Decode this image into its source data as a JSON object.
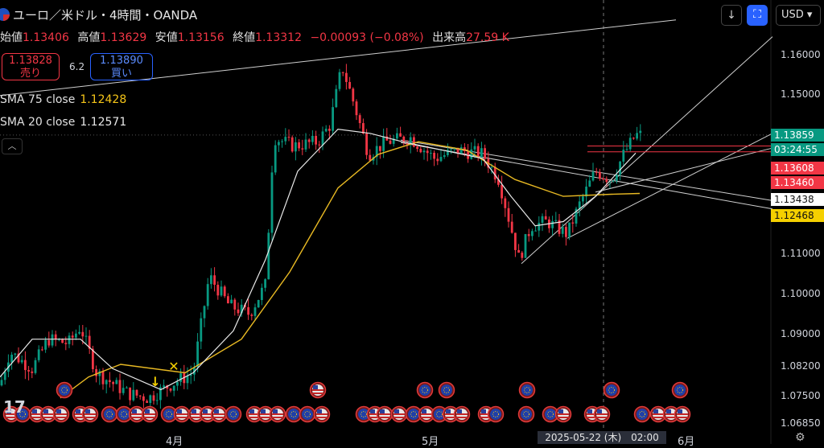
{
  "header": {
    "title": "ユーロ／米ドル・4時間・OANDA"
  },
  "ohlc": {
    "open_label": "始値",
    "open": "1.13406",
    "high_label": "高値",
    "high": "1.13629",
    "low_label": "安値",
    "low": "1.13156",
    "close_label": "終値",
    "close": "1.13312",
    "change": "−0.00093 (−0.08%)",
    "volume_label": "出来高",
    "volume": "27.59 K"
  },
  "trade": {
    "sell_price": "1.13828",
    "sell_label": "売り",
    "spread": "6.2",
    "buy_price": "1.13890",
    "buy_label": "買い"
  },
  "indicators": {
    "sma75_label": "SMA 75 close",
    "sma75_value": "1.12428",
    "sma20_label": "SMA 20 close",
    "sma20_value": "1.12571"
  },
  "toolbar": {
    "currency": "USD"
  },
  "price_labels": {
    "last": "1.13859",
    "countdown": "03:24:55",
    "red1": "1.13608",
    "red2": "1.13460",
    "white": "1.13438",
    "yellow": "1.12468"
  },
  "colors": {
    "up": "#089981",
    "down": "#f23645",
    "sma75": "#e8b923",
    "sma20": "#e8e8e8",
    "last": "#089981"
  },
  "chart_data": {
    "type": "candlestick",
    "ylim": [
      1.0685,
      1.165
    ],
    "y_ticks": [
      "1.16000",
      "1.15000",
      "1.11000",
      "1.10000",
      "1.09000",
      "1.08200",
      "1.07500",
      "1.06850"
    ],
    "x_labels": [
      "4月",
      "5月",
      "6月"
    ],
    "crosshair_label": "2025-05-22 (木)　02:00",
    "anchors": [
      [
        0,
        1.079
      ],
      [
        12,
        1.087
      ],
      [
        40,
        1.083
      ],
      [
        60,
        1.09
      ],
      [
        85,
        1.089
      ],
      [
        100,
        1.093
      ],
      [
        120,
        1.082
      ],
      [
        160,
        1.077
      ],
      [
        185,
        1.076
      ],
      [
        210,
        1.079
      ],
      [
        240,
        1.082
      ],
      [
        260,
        1.105
      ],
      [
        285,
        1.098
      ],
      [
        310,
        1.096
      ],
      [
        330,
        1.103
      ],
      [
        340,
        1.138
      ],
      [
        365,
        1.136
      ],
      [
        395,
        1.137
      ],
      [
        410,
        1.141
      ],
      [
        425,
        1.155
      ],
      [
        440,
        1.146
      ],
      [
        458,
        1.134
      ],
      [
        480,
        1.137
      ],
      [
        510,
        1.138
      ],
      [
        540,
        1.133
      ],
      [
        570,
        1.135
      ],
      [
        600,
        1.134
      ],
      [
        620,
        1.128
      ],
      [
        645,
        1.109
      ],
      [
        660,
        1.117
      ],
      [
        680,
        1.118
      ],
      [
        705,
        1.115
      ],
      [
        720,
        1.122
      ],
      [
        740,
        1.13
      ],
      [
        760,
        1.128
      ],
      [
        775,
        1.134
      ],
      [
        790,
        1.1386
      ]
    ],
    "sma20_anchors": [
      [
        0,
        1.081
      ],
      [
        40,
        1.09
      ],
      [
        100,
        1.09
      ],
      [
        140,
        1.083
      ],
      [
        200,
        1.078
      ],
      [
        240,
        1.082
      ],
      [
        290,
        1.092
      ],
      [
        330,
        1.109
      ],
      [
        370,
        1.13
      ],
      [
        420,
        1.14
      ],
      [
        460,
        1.139
      ],
      [
        500,
        1.137
      ],
      [
        550,
        1.135
      ],
      [
        600,
        1.133
      ],
      [
        635,
        1.124
      ],
      [
        665,
        1.117
      ],
      [
        700,
        1.118
      ],
      [
        740,
        1.124
      ],
      [
        790,
        1.1343
      ]
    ],
    "sma75_anchors": [
      [
        75,
        1.076
      ],
      [
        110,
        1.081
      ],
      [
        150,
        1.084
      ],
      [
        230,
        1.082
      ],
      [
        300,
        1.09
      ],
      [
        360,
        1.106
      ],
      [
        420,
        1.126
      ],
      [
        470,
        1.134
      ],
      [
        520,
        1.137
      ],
      [
        580,
        1.135
      ],
      [
        640,
        1.128
      ],
      [
        700,
        1.124
      ],
      [
        760,
        1.1245
      ],
      [
        795,
        1.1247
      ]
    ],
    "trendlines": [
      [
        [
          0,
          1.148
        ],
        [
          840,
          1.166
        ]
      ],
      [
        [
          498,
          1.1374
        ],
        [
          960,
          1.123
        ]
      ],
      [
        [
          498,
          1.1368
        ],
        [
          960,
          1.121
        ]
      ],
      [
        [
          648,
          1.108
        ],
        [
          960,
          1.162
        ]
      ],
      [
        [
          705,
          1.114
        ],
        [
          960,
          1.139
        ]
      ],
      [
        [
          740,
          1.125
        ],
        [
          960,
          1.1355
        ]
      ]
    ],
    "hlines": [
      1.136,
      1.1346
    ],
    "hline_x_start": 730,
    "crosshair_x": 750,
    "events": [
      {
        "x": 80,
        "row": 1,
        "kind": "eu"
      },
      {
        "x": 395,
        "row": 1,
        "kind": "us"
      },
      {
        "x": 528,
        "row": 1,
        "kind": "eu"
      },
      {
        "x": 555,
        "row": 1,
        "kind": "eu"
      },
      {
        "x": 655,
        "row": 1,
        "kind": "eu"
      },
      {
        "x": 760,
        "row": 1,
        "kind": "eu"
      },
      {
        "x": 845,
        "row": 1,
        "kind": "eu"
      },
      {
        "x": 14,
        "row": 0,
        "kind": "us"
      },
      {
        "x": 28,
        "row": 0,
        "kind": "eu"
      },
      {
        "x": 46,
        "row": 0,
        "kind": "us"
      },
      {
        "x": 60,
        "row": 0,
        "kind": "us"
      },
      {
        "x": 76,
        "row": 0,
        "kind": "us"
      },
      {
        "x": 100,
        "row": 0,
        "kind": "us"
      },
      {
        "x": 112,
        "row": 0,
        "kind": "us"
      },
      {
        "x": 136,
        "row": 0,
        "kind": "eu"
      },
      {
        "x": 154,
        "row": 0,
        "kind": "eu"
      },
      {
        "x": 170,
        "row": 0,
        "kind": "us"
      },
      {
        "x": 186,
        "row": 0,
        "kind": "us"
      },
      {
        "x": 210,
        "row": 0,
        "kind": "eu"
      },
      {
        "x": 226,
        "row": 0,
        "kind": "us"
      },
      {
        "x": 244,
        "row": 0,
        "kind": "us"
      },
      {
        "x": 258,
        "row": 0,
        "kind": "us"
      },
      {
        "x": 272,
        "row": 0,
        "kind": "us"
      },
      {
        "x": 290,
        "row": 0,
        "kind": "eu"
      },
      {
        "x": 316,
        "row": 0,
        "kind": "us"
      },
      {
        "x": 330,
        "row": 0,
        "kind": "us"
      },
      {
        "x": 345,
        "row": 0,
        "kind": "us"
      },
      {
        "x": 365,
        "row": 0,
        "kind": "eu"
      },
      {
        "x": 382,
        "row": 0,
        "kind": "eu"
      },
      {
        "x": 400,
        "row": 0,
        "kind": "us"
      },
      {
        "x": 452,
        "row": 0,
        "kind": "eu"
      },
      {
        "x": 466,
        "row": 0,
        "kind": "us"
      },
      {
        "x": 478,
        "row": 0,
        "kind": "us"
      },
      {
        "x": 496,
        "row": 0,
        "kind": "us"
      },
      {
        "x": 514,
        "row": 0,
        "kind": "eu"
      },
      {
        "x": 530,
        "row": 0,
        "kind": "us"
      },
      {
        "x": 546,
        "row": 0,
        "kind": "eu"
      },
      {
        "x": 560,
        "row": 0,
        "kind": "us"
      },
      {
        "x": 574,
        "row": 0,
        "kind": "us"
      },
      {
        "x": 604,
        "row": 0,
        "kind": "us"
      },
      {
        "x": 616,
        "row": 0,
        "kind": "eu"
      },
      {
        "x": 654,
        "row": 0,
        "kind": "eu"
      },
      {
        "x": 684,
        "row": 0,
        "kind": "eu"
      },
      {
        "x": 700,
        "row": 0,
        "kind": "us"
      },
      {
        "x": 736,
        "row": 0,
        "kind": "us"
      },
      {
        "x": 748,
        "row": 0,
        "kind": "us"
      },
      {
        "x": 798,
        "row": 0,
        "kind": "eu"
      },
      {
        "x": 818,
        "row": 0,
        "kind": "us"
      },
      {
        "x": 834,
        "row": 0,
        "kind": "us"
      },
      {
        "x": 848,
        "row": 0,
        "kind": "us"
      }
    ],
    "markers": [
      {
        "x": 193,
        "price": 1.0788,
        "symbol": "↓"
      },
      {
        "x": 216,
        "price": 1.0825,
        "symbol": "✕"
      }
    ]
  }
}
